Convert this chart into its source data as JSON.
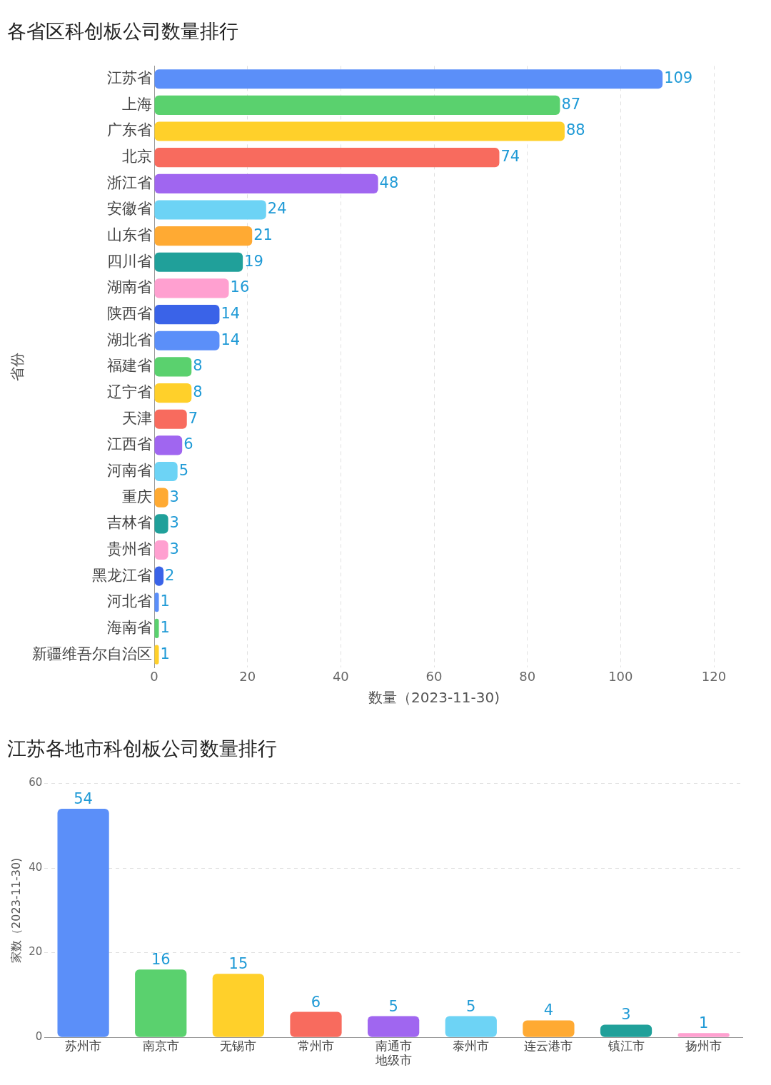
{
  "chart_data": [
    {
      "type": "bar",
      "orientation": "horizontal",
      "title": "各省区科创板公司数量排行",
      "ylabel": "省份",
      "xlabel": "数量（2023-11-30)",
      "categories": [
        "江苏省",
        "上海",
        "广东省",
        "北京",
        "浙江省",
        "安徽省",
        "山东省",
        "四川省",
        "湖南省",
        "陕西省",
        "湖北省",
        "福建省",
        "辽宁省",
        "天津",
        "江西省",
        "河南省",
        "重庆",
        "吉林省",
        "贵州省",
        "黑龙江省",
        "河北省",
        "海南省",
        "新疆维吾尔自治区"
      ],
      "values": [
        109,
        87,
        88,
        74,
        48,
        24,
        21,
        19,
        16,
        14,
        14,
        8,
        8,
        7,
        6,
        5,
        3,
        3,
        3,
        2,
        1,
        1,
        1
      ],
      "colors": [
        "#5b8ff9",
        "#5ad16e",
        "#ffd02a",
        "#f86b5e",
        "#a066f0",
        "#6dd3f5",
        "#ffaa33",
        "#20a09a",
        "#ffa0d0",
        "#3a63e8",
        "#5b8ff9",
        "#5ad16e",
        "#ffd02a",
        "#f86b5e",
        "#a066f0",
        "#6dd3f5",
        "#ffaa33",
        "#20a09a",
        "#ffa0d0",
        "#3a63e8",
        "#5b8ff9",
        "#5ad16e",
        "#ffd02a"
      ],
      "xlim": [
        0,
        120
      ],
      "xticks": [
        0,
        20,
        40,
        60,
        80,
        100,
        120
      ],
      "grid": "x",
      "data_labels": true
    },
    {
      "type": "bar",
      "title": "江苏各地市科创板公司数量排行",
      "ylabel": "家数（2023-11-30)",
      "categories": [
        "苏州市",
        "南京市",
        "无锡市",
        "常州市",
        "南通市地级市",
        "泰州市",
        "连云港市",
        "镇江市",
        "扬州市"
      ],
      "values": [
        54,
        16,
        15,
        6,
        5,
        5,
        4,
        3,
        1
      ],
      "colors": [
        "#5b8ff9",
        "#5ad16e",
        "#ffd02a",
        "#f86b5e",
        "#a066f0",
        "#6dd3f5",
        "#ffaa33",
        "#20a09a",
        "#ffa0d0"
      ],
      "ylim": [
        0,
        60
      ],
      "yticks": [
        0,
        20,
        40,
        60
      ],
      "grid": "y",
      "data_labels": true
    }
  ]
}
